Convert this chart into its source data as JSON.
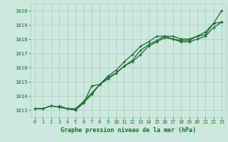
{
  "title": "Graphe pression niveau de la mer (hPa)",
  "bg_color": "#cce8df",
  "grid_color": "#aad4c8",
  "line_color": "#1a6b2a",
  "marker_color": "#1a6b2a",
  "xmin": -0.5,
  "xmax": 23.5,
  "ymin": 1012.5,
  "ymax": 1020.5,
  "yticks": [
    1013,
    1014,
    1015,
    1016,
    1017,
    1018,
    1019,
    1020
  ],
  "xticks": [
    0,
    1,
    2,
    3,
    4,
    5,
    6,
    7,
    8,
    9,
    10,
    11,
    12,
    13,
    14,
    15,
    16,
    17,
    18,
    19,
    20,
    21,
    22,
    23
  ],
  "series1_x": [
    0,
    1,
    2,
    3,
    4,
    5,
    6,
    7,
    8,
    9,
    10,
    11,
    12,
    13,
    14,
    15,
    16,
    17,
    18,
    19,
    20,
    21,
    22,
    23
  ],
  "series1_y": [
    1013.1,
    1013.1,
    1013.3,
    1013.2,
    1013.1,
    1013.1,
    1013.6,
    1014.2,
    1014.8,
    1015.3,
    1015.6,
    1016.1,
    1016.5,
    1017.2,
    1017.6,
    1017.9,
    1018.2,
    1018.2,
    1018.0,
    1018.0,
    1018.2,
    1018.5,
    1019.1,
    1020.0
  ],
  "series2_x": [
    0,
    1,
    2,
    3,
    4,
    5,
    6,
    7,
    8,
    9,
    10,
    11,
    12,
    13,
    14,
    15,
    16,
    17,
    18,
    19,
    20,
    21,
    22,
    23
  ],
  "series2_y": [
    1013.1,
    1013.1,
    1013.3,
    1013.2,
    1013.1,
    1013.0,
    1013.5,
    1014.7,
    1014.8,
    1015.4,
    1015.8,
    1016.4,
    1016.9,
    1017.5,
    1017.8,
    1018.2,
    1018.2,
    1018.0,
    1017.9,
    1017.9,
    1018.2,
    1018.3,
    1019.1,
    1019.2
  ],
  "series3_x": [
    3,
    4,
    5,
    6,
    7,
    8,
    9,
    10,
    11,
    12,
    13,
    14,
    15,
    16,
    17,
    18,
    19,
    20,
    21,
    22,
    23
  ],
  "series3_y": [
    1013.3,
    1013.1,
    1013.0,
    1013.5,
    1014.1,
    1014.8,
    1015.2,
    1015.6,
    1016.1,
    1016.4,
    1016.9,
    1017.5,
    1017.8,
    1018.1,
    1018.0,
    1017.8,
    1017.8,
    1018.0,
    1018.2,
    1018.8,
    1019.2
  ]
}
